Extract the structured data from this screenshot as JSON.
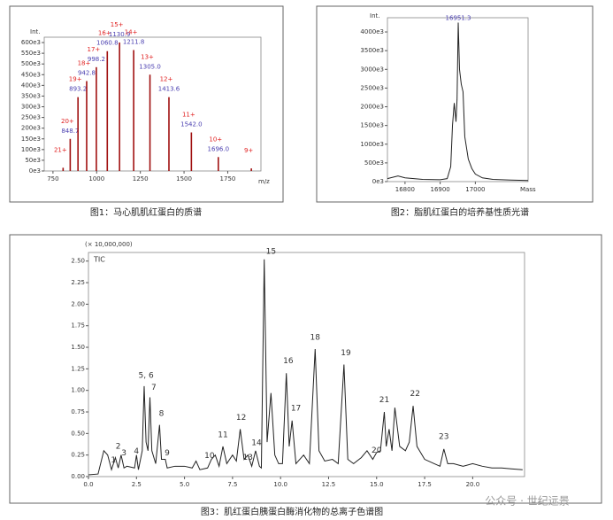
{
  "watermark": "公众号 · 世纪远景",
  "chart_data": [
    {
      "type": "stem",
      "title": "图1：马心肌肌红蛋白的质谱",
      "ylabel": "Int.",
      "xlabel": "m/z",
      "x": [
        808,
        848.7,
        893.2,
        942.8,
        998.2,
        1060.8,
        1130.9,
        1211.8,
        1305.0,
        1413.6,
        1542.0,
        1696.0,
        1885
      ],
      "x_labels": [
        null,
        "848.7",
        "893.2",
        "942.8",
        "998.2",
        "1060.8",
        "1130.9",
        "1211.8",
        "1305.0",
        "1413.6",
        "1542.0",
        "1696.0",
        null
      ],
      "charges": [
        "21+",
        "20+",
        "19+",
        "18+",
        "17+",
        "16+",
        "15+",
        "14+",
        "13+",
        "12+",
        "11+",
        "10+",
        "9+"
      ],
      "values": [
        15000,
        150000,
        345000,
        420000,
        485000,
        560000,
        600000,
        565000,
        450000,
        345000,
        180000,
        65000,
        12000
      ],
      "color": "#a01010",
      "charge_color": "#e02020",
      "mz_color": "#4a3fb0",
      "xlim": [
        700,
        1940
      ],
      "xticks": [
        750,
        1000,
        1250,
        1500,
        1750
      ],
      "ylim": [
        0,
        625000
      ],
      "yticks": [
        {
          "value": 0,
          "label": "0e3"
        },
        {
          "value": 50000,
          "label": "50e3"
        },
        {
          "value": 100000,
          "label": "100e3"
        },
        {
          "value": 150000,
          "label": "150e3"
        },
        {
          "value": 200000,
          "label": "200e3"
        },
        {
          "value": 250000,
          "label": "250e3"
        },
        {
          "value": 300000,
          "label": "300e3"
        },
        {
          "value": 350000,
          "label": "350e3"
        },
        {
          "value": 400000,
          "label": "400e3"
        },
        {
          "value": 450000,
          "label": "450e3"
        },
        {
          "value": 500000,
          "label": "500e3"
        },
        {
          "value": 550000,
          "label": "550e3"
        },
        {
          "value": 600000,
          "label": "600e3"
        }
      ]
    },
    {
      "type": "line",
      "title": "图2：脂肌红蛋白的培养基性质光谱",
      "ylabel": "Int.",
      "xlabel": "Mass",
      "x": [
        16750,
        16780,
        16800,
        16850,
        16900,
        16920,
        16930,
        16935,
        16940,
        16945,
        16948,
        16951.3,
        16955,
        16960,
        16965,
        16970,
        16980,
        16990,
        17000,
        17020,
        17050,
        17100,
        17150
      ],
      "series": [
        {
          "name": "16951.3",
          "color": "#222222",
          "values": [
            80000,
            150000,
            100000,
            60000,
            50000,
            80000,
            400000,
            1500000,
            2100000,
            1600000,
            2200000,
            4250000,
            3000000,
            2600000,
            2400000,
            1200000,
            600000,
            350000,
            200000,
            100000,
            60000,
            40000,
            30000
          ]
        }
      ],
      "label_color": "#4a3fb0",
      "xlim": [
        16750,
        17150
      ],
      "xticks": [
        16800,
        16900,
        17000
      ],
      "ylim": [
        0,
        4380000
      ],
      "yticks": [
        {
          "value": 0,
          "label": "0e3"
        },
        {
          "value": 500000,
          "label": "500e3"
        },
        {
          "value": 1000000,
          "label": "1000e3"
        },
        {
          "value": 1500000,
          "label": "1500e3"
        },
        {
          "value": 2000000,
          "label": "2000e3"
        },
        {
          "value": 2500000,
          "label": "2500e3"
        },
        {
          "value": 3000000,
          "label": "3000e3"
        },
        {
          "value": 3500000,
          "label": "3500e3"
        },
        {
          "value": 4000000,
          "label": "4000e3"
        }
      ]
    },
    {
      "type": "line",
      "title": "图3：肌红蛋白胰蛋白酶消化物的总离子色谱图",
      "ylabel": "(× 10,000,000)",
      "x": [
        0.0,
        0.5,
        0.8,
        1.0,
        1.2,
        1.4,
        1.55,
        1.7,
        1.85,
        2.0,
        2.4,
        2.5,
        2.6,
        2.8,
        2.9,
        3.0,
        3.1,
        3.2,
        3.3,
        3.5,
        3.7,
        3.8,
        4.0,
        4.1,
        4.5,
        5.0,
        5.4,
        5.6,
        5.8,
        6.2,
        6.4,
        6.6,
        6.8,
        7.0,
        7.2,
        7.5,
        7.7,
        7.9,
        8.1,
        8.3,
        8.5,
        8.7,
        8.9,
        9.0,
        9.15,
        9.3,
        9.5,
        9.7,
        9.9,
        10.1,
        10.3,
        10.45,
        10.6,
        10.8,
        11.2,
        11.5,
        11.8,
        12.0,
        12.3,
        12.7,
        13.0,
        13.3,
        13.5,
        13.8,
        14.2,
        14.5,
        14.8,
        15.0,
        15.2,
        15.4,
        15.5,
        15.65,
        15.8,
        15.95,
        16.2,
        16.5,
        16.7,
        16.9,
        17.1,
        17.5,
        18.0,
        18.3,
        18.5,
        18.7,
        19.0,
        19.5,
        20.0,
        20.5,
        21.0,
        21.5,
        22.0,
        22.6
      ],
      "series": [
        {
          "name": "TIC",
          "color": "#222222",
          "values": [
            0.02,
            0.03,
            0.3,
            0.25,
            0.08,
            0.22,
            0.1,
            0.25,
            0.1,
            0.12,
            0.1,
            0.25,
            0.08,
            0.3,
            1.05,
            0.4,
            0.3,
            0.92,
            0.3,
            0.15,
            0.6,
            0.2,
            0.2,
            0.1,
            0.12,
            0.12,
            0.1,
            0.18,
            0.08,
            0.1,
            0.2,
            0.25,
            0.12,
            0.35,
            0.15,
            0.25,
            0.18,
            0.55,
            0.2,
            0.25,
            0.12,
            0.3,
            0.12,
            0.1,
            2.52,
            0.4,
            0.97,
            0.25,
            0.15,
            0.15,
            1.2,
            0.35,
            0.65,
            0.15,
            0.25,
            0.15,
            1.48,
            0.3,
            0.18,
            0.2,
            0.15,
            1.3,
            0.2,
            0.15,
            0.22,
            0.3,
            0.2,
            0.28,
            0.3,
            0.75,
            0.35,
            0.55,
            0.3,
            0.8,
            0.35,
            0.3,
            0.4,
            0.82,
            0.35,
            0.2,
            0.15,
            0.12,
            0.32,
            0.15,
            0.15,
            0.12,
            0.15,
            0.12,
            0.1,
            0.1,
            0.09,
            0.08
          ]
        }
      ],
      "annotations": [
        {
          "text": "1",
          "x": 1.3,
          "y": 0.14
        },
        {
          "text": "2",
          "x": 1.55,
          "y": 0.3
        },
        {
          "text": "3",
          "x": 1.85,
          "y": 0.22
        },
        {
          "text": "4",
          "x": 2.5,
          "y": 0.24
        },
        {
          "text": "5, 6",
          "x": 3.0,
          "y": 1.12
        },
        {
          "text": "7",
          "x": 3.4,
          "y": 0.98
        },
        {
          "text": "8",
          "x": 3.8,
          "y": 0.68
        },
        {
          "text": "9",
          "x": 4.1,
          "y": 0.22
        },
        {
          "text": "10",
          "x": 6.3,
          "y": 0.19
        },
        {
          "text": "11",
          "x": 7.0,
          "y": 0.43
        },
        {
          "text": "12",
          "x": 7.95,
          "y": 0.63
        },
        {
          "text": "13",
          "x": 8.3,
          "y": 0.17
        },
        {
          "text": "14",
          "x": 8.75,
          "y": 0.34
        },
        {
          "text": "15",
          "x": 9.5,
          "y": 2.56
        },
        {
          "text": "16",
          "x": 10.4,
          "y": 1.29
        },
        {
          "text": "17",
          "x": 10.8,
          "y": 0.74
        },
        {
          "text": "18",
          "x": 11.8,
          "y": 1.56
        },
        {
          "text": "19",
          "x": 13.4,
          "y": 1.38
        },
        {
          "text": "20",
          "x": 15.0,
          "y": 0.25
        },
        {
          "text": "21",
          "x": 15.4,
          "y": 0.84
        },
        {
          "text": "22",
          "x": 17.0,
          "y": 0.91
        },
        {
          "text": "23",
          "x": 18.5,
          "y": 0.41
        }
      ],
      "xlim": [
        0,
        22.7
      ],
      "xticks": [
        {
          "value": 0,
          "label": "0.0"
        },
        {
          "value": 2.5,
          "label": "2.5"
        },
        {
          "value": 5,
          "label": "5.0"
        },
        {
          "value": 7.5,
          "label": "7.5"
        },
        {
          "value": 10,
          "label": "10.0"
        },
        {
          "value": 12.5,
          "label": "12.5"
        },
        {
          "value": 15,
          "label": "15.0"
        },
        {
          "value": 17.5,
          "label": "17.5"
        },
        {
          "value": 20,
          "label": "20.0"
        }
      ],
      "ylim": [
        0,
        2.6
      ],
      "yticks": [
        {
          "value": 0,
          "label": "0.00"
        },
        {
          "value": 0.25,
          "label": "0.25"
        },
        {
          "value": 0.5,
          "label": "0.50"
        },
        {
          "value": 0.75,
          "label": "0.75"
        },
        {
          "value": 1,
          "label": "1.00"
        },
        {
          "value": 1.25,
          "label": "1.25"
        },
        {
          "value": 1.5,
          "label": "1.50"
        },
        {
          "value": 1.75,
          "label": "1.75"
        },
        {
          "value": 2,
          "label": "2.00"
        },
        {
          "value": 2.25,
          "label": "2.25"
        },
        {
          "value": 2.5,
          "label": "2.50"
        }
      ]
    }
  ]
}
